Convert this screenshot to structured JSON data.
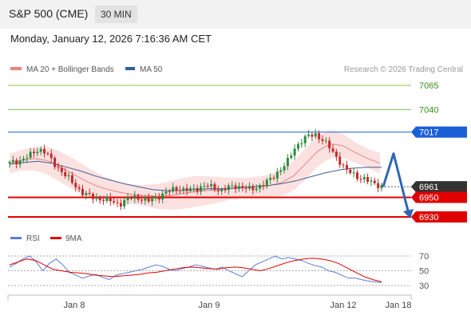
{
  "header": {
    "title": "S&P 500 (CME)",
    "timeframe": "30 MIN"
  },
  "datetime": "Monday, January 12, 2026 7:16:36 AM CET",
  "legend": {
    "items": [
      {
        "label": "MA 20 + Bollinger Bands",
        "color": "#f08080"
      },
      {
        "label": "MA 50",
        "color": "#2f5f9f"
      }
    ],
    "source": "Research © 2026 Trading Central"
  },
  "chart_data": [
    {
      "type": "candlestick",
      "ylim": [
        6920,
        7078
      ],
      "levels": [
        {
          "value": 7065,
          "label": "7065",
          "kind": "target",
          "color": "#8bc34a"
        },
        {
          "value": 7040,
          "label": "7040",
          "kind": "target",
          "color": "#8bc34a"
        },
        {
          "value": 7017,
          "label": "7017",
          "kind": "pivot",
          "color": "#1a5fd6"
        },
        {
          "value": 6961,
          "label": "6961",
          "kind": "last",
          "color": "#333333"
        },
        {
          "value": 6950,
          "label": "6950",
          "kind": "support",
          "color": "#e00000"
        },
        {
          "value": 6930,
          "label": "6930",
          "kind": "support",
          "color": "#e00000"
        }
      ],
      "close_path": [
        6985,
        6987,
        6990,
        6994,
        7000,
        6996,
        6985,
        6978,
        6970,
        6962,
        6955,
        6951,
        6949,
        6948,
        6946,
        6943,
        6947,
        6951,
        6949,
        6946,
        6950,
        6953,
        6957,
        6960,
        6957,
        6958,
        6960,
        6962,
        6960,
        6957,
        6960,
        6962,
        6960,
        6958,
        6961,
        6964,
        6970,
        6978,
        6985,
        7000,
        7008,
        7013,
        7015,
        7008,
        7000,
        6990,
        6978,
        6975,
        6970,
        6967,
        6965,
        6961
      ],
      "ma20": [
        6985,
        6988,
        6990,
        6988,
        6982,
        6975,
        6968,
        6962,
        6958,
        6955,
        6953,
        6952,
        6951,
        6952,
        6954,
        6956,
        6957,
        6958,
        6959,
        6960,
        6961,
        6962,
        6965,
        6972,
        6985,
        6998,
        7005,
        7003,
        6996,
        6990,
        6985
      ],
      "ma50": [
        6984,
        6986,
        6987,
        6985,
        6981,
        6977,
        6972,
        6968,
        6964,
        6961,
        6958,
        6957,
        6957,
        6958,
        6959,
        6959,
        6960,
        6961,
        6962,
        6964,
        6967,
        6971,
        6975,
        6978,
        6980,
        6981,
        6981
      ],
      "projection": [
        6961,
        6995,
        6930
      ],
      "x_labels": [
        "Jan 8",
        "Jan 9",
        "Jan 12",
        "Jan 18"
      ]
    },
    {
      "type": "line",
      "title": "RSI",
      "series": [
        {
          "name": "RSI",
          "color": "#5b7fd8",
          "values": [
            55,
            60,
            66,
            70,
            62,
            50,
            60,
            66,
            58,
            48,
            44,
            40,
            43,
            45,
            41,
            38,
            44,
            46,
            48,
            50,
            52,
            55,
            58,
            56,
            52,
            50,
            53,
            55,
            58,
            56,
            54,
            52,
            55,
            50,
            46,
            42,
            50,
            58,
            62,
            66,
            70,
            66,
            68,
            66,
            64,
            60,
            57,
            55,
            50,
            48,
            44,
            40,
            40,
            38,
            36,
            35,
            34
          ]
        },
        {
          "name": "9MA",
          "color": "#e00000",
          "values": [
            58,
            62,
            66,
            64,
            58,
            52,
            50,
            48,
            47,
            46,
            44,
            43,
            42,
            43,
            44,
            45,
            47,
            48,
            50,
            52,
            54,
            55,
            54,
            53,
            52,
            54,
            55,
            54,
            52,
            50,
            53,
            57,
            61,
            64,
            66,
            67,
            66,
            64,
            60,
            54,
            48,
            42,
            38,
            35
          ]
        }
      ],
      "yticks": [
        70,
        50,
        30
      ],
      "ylim": [
        20,
        80
      ]
    }
  ]
}
